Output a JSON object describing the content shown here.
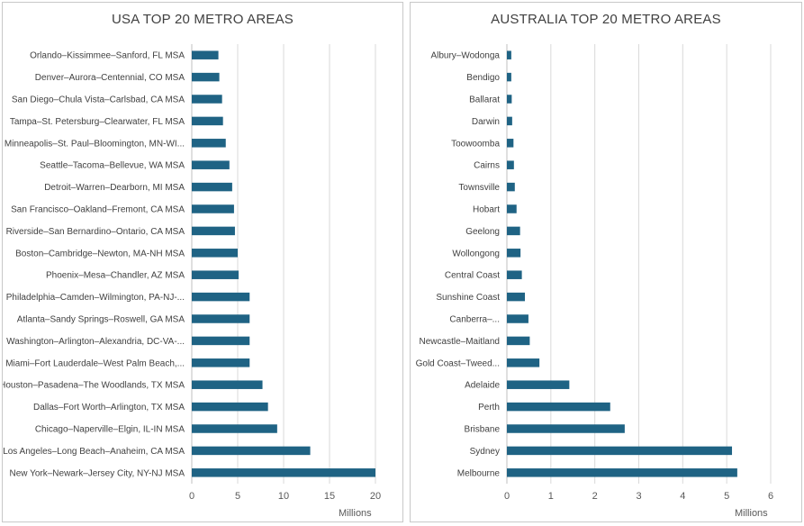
{
  "chart_data": [
    {
      "type": "bar",
      "orientation": "horizontal",
      "title": "USA TOP 20 METRO AREAS",
      "xlabel": "Millions",
      "xlim": [
        0,
        20
      ],
      "xticks": [
        "0",
        "5",
        "10",
        "15",
        "20"
      ],
      "grid": "vertical",
      "bar_color": "#1f6384",
      "categories": [
        "Orlando–Kissimmee–Sanford, FL MSA",
        "Denver–Aurora–Centennial, CO MSA",
        "San Diego–Chula Vista–Carlsbad, CA MSA",
        "Tampa–St. Petersburg–Clearwater, FL MSA",
        "Minneapolis–St. Paul–Bloomington, MN-WI...",
        "Seattle–Tacoma–Bellevue, WA MSA",
        "Detroit–Warren–Dearborn, MI MSA",
        "San Francisco–Oakland–Fremont, CA MSA",
        "Riverside–San Bernardino–Ontario, CA MSA",
        "Boston–Cambridge–Newton, MA-NH MSA",
        "Phoenix–Mesa–Chandler, AZ MSA",
        "Philadelphia–Camden–Wilmington, PA-NJ-...",
        "Atlanta–Sandy Springs–Roswell, GA MSA",
        "Washington–Arlington–Alexandria, DC-VA-...",
        "Miami–Fort Lauderdale–West Palm Beach,...",
        "Houston–Pasadena–The Woodlands, TX MSA",
        "Dallas–Fort Worth–Arlington, TX MSA",
        "Chicago–Naperville–Elgin, IL-IN MSA",
        "Los Angeles–Long Beach–Anaheim, CA MSA",
        "New York–Newark–Jersey City, NY-NJ MSA"
      ],
      "values": [
        2.9,
        3.0,
        3.3,
        3.4,
        3.7,
        4.1,
        4.4,
        4.6,
        4.7,
        5.0,
        5.1,
        6.3,
        6.3,
        6.3,
        6.3,
        7.7,
        8.3,
        9.3,
        12.9,
        20.0
      ]
    },
    {
      "type": "bar",
      "orientation": "horizontal",
      "title": "AUSTRALIA TOP 20 METRO AREAS",
      "xlabel": "Millions",
      "xlim": [
        0,
        6
      ],
      "xticks": [
        "0",
        "1",
        "2",
        "3",
        "4",
        "5",
        "6"
      ],
      "grid": "vertical",
      "bar_color": "#1f6384",
      "categories": [
        "Albury–Wodonga",
        "Bendigo",
        "Ballarat",
        "Darwin",
        "Toowoomba",
        "Cairns",
        "Townsville",
        "Hobart",
        "Geelong",
        "Wollongong",
        "Central Coast",
        "Sunshine Coast",
        "Canberra–...",
        "Newcastle–Maitland",
        "Gold Coast–Tweed...",
        "Adelaide",
        "Perth",
        "Brisbane",
        "Sydney",
        "Melbourne"
      ],
      "values": [
        0.1,
        0.1,
        0.11,
        0.12,
        0.15,
        0.16,
        0.18,
        0.22,
        0.3,
        0.31,
        0.34,
        0.41,
        0.49,
        0.52,
        0.74,
        1.42,
        2.35,
        2.68,
        5.12,
        5.24
      ]
    }
  ]
}
